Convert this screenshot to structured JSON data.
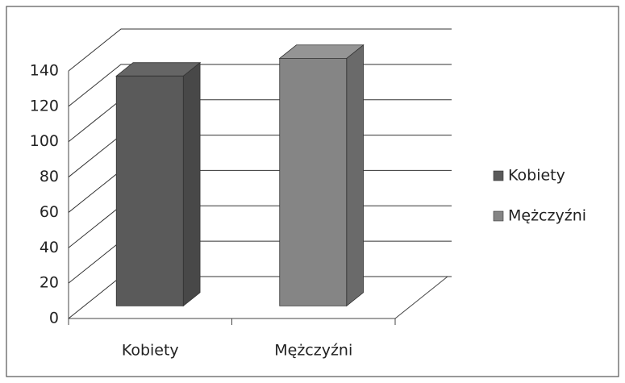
{
  "chart_data": {
    "type": "bar3d",
    "categories": [
      "Kobiety",
      "Mężczyźni"
    ],
    "series": [
      {
        "name": "Kobiety",
        "color": "#5a5a5a",
        "values": [
          130,
          null
        ]
      },
      {
        "name": "Mężczyźni",
        "color": "#858585",
        "values": [
          null,
          140
        ]
      }
    ],
    "ylim": [
      0,
      140
    ],
    "yticks": [
      0,
      20,
      40,
      60,
      80,
      100,
      120,
      140
    ],
    "grid": true,
    "legend": "right"
  }
}
